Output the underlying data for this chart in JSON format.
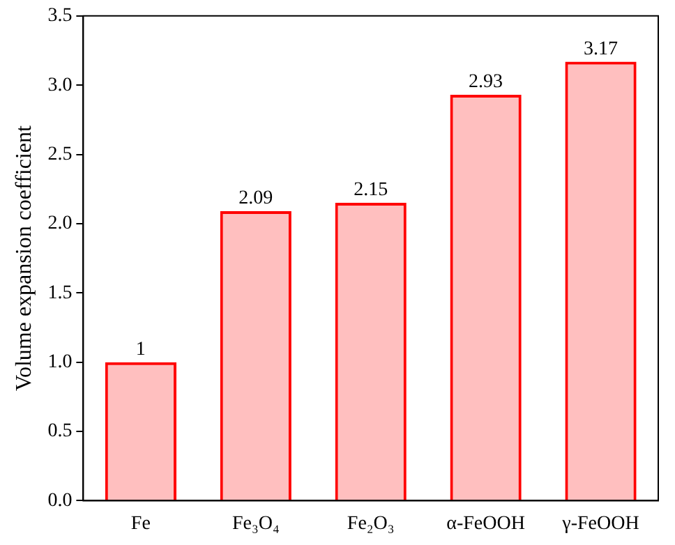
{
  "chart_data": {
    "type": "bar",
    "ylabel": "Volume expansion coefficient",
    "categories": [
      "Fe",
      "Fe₃O₄",
      "Fe₂O₃",
      "α-FeOOH",
      "γ-FeOOH"
    ],
    "values": [
      1,
      2.09,
      2.15,
      2.93,
      3.17
    ],
    "color": "#ff0000",
    "ylim": [
      0,
      3.5
    ],
    "yticks": [
      {
        "value": 0,
        "label": "0.0"
      },
      {
        "value": 0.5,
        "label": "0.5"
      },
      {
        "value": 1,
        "label": "1.0"
      },
      {
        "value": 1.5,
        "label": "1.5"
      },
      {
        "value": 2,
        "label": "2.0"
      },
      {
        "value": 2.5,
        "label": "2.5"
      },
      {
        "value": 3,
        "label": "3.0"
      },
      {
        "value": 3.5,
        "label": "3.5"
      }
    ],
    "data_labels": true,
    "grid": false,
    "legend": false
  }
}
